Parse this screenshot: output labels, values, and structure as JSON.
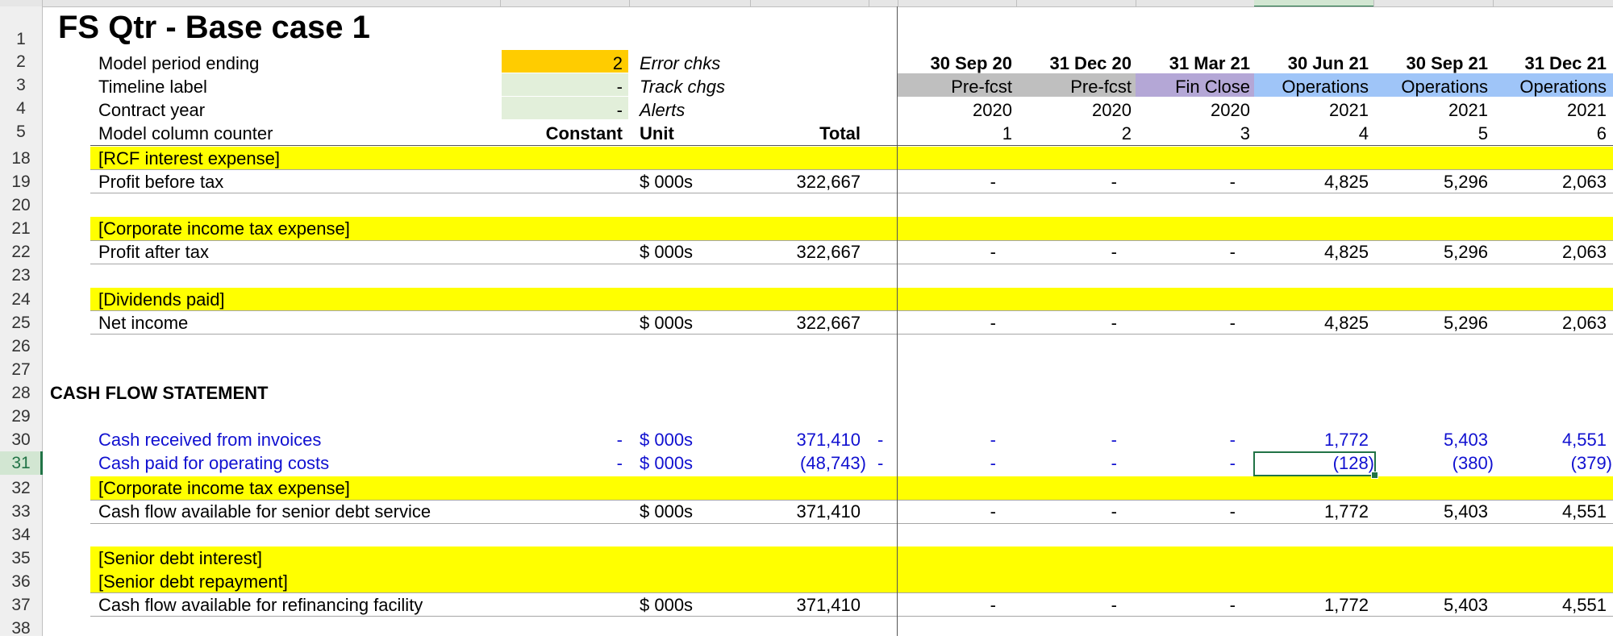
{
  "sheet": {
    "title": "FS Qtr - Base case 1",
    "row_numbers": [
      "1",
      "2",
      "3",
      "4",
      "5",
      "18",
      "19",
      "20",
      "21",
      "22",
      "23",
      "24",
      "25",
      "26",
      "27",
      "28",
      "29",
      "30",
      "31",
      "32",
      "33",
      "34",
      "35",
      "36",
      "37",
      "38"
    ],
    "selected_row": "31",
    "selected_cell": "M31"
  },
  "header_rows": {
    "model_period_ending": {
      "label": "Model period ending",
      "value": "2",
      "side_label": "Error chks"
    },
    "timeline_label": {
      "label": "Timeline label",
      "value": "-",
      "side_label": "Track chgs"
    },
    "contract_year": {
      "label": "Contract year",
      "value": "-",
      "side_label": "Alerts"
    },
    "model_column_counter": {
      "label": "Model column counter",
      "constant_header": "Constant",
      "unit_header": "Unit",
      "total_header": "Total"
    }
  },
  "periods": [
    {
      "date": "30 Sep 20",
      "phase": "Pre-fcst",
      "year": "2020",
      "counter": "1"
    },
    {
      "date": "31 Dec 20",
      "phase": "Pre-fcst",
      "year": "2020",
      "counter": "2"
    },
    {
      "date": "31 Mar 21",
      "phase": "Fin Close",
      "year": "2020",
      "counter": "3"
    },
    {
      "date": "30 Jun 21",
      "phase": "Operations",
      "year": "2021",
      "counter": "4"
    },
    {
      "date": "30 Sep 21",
      "phase": "Operations",
      "year": "2021",
      "counter": "5"
    },
    {
      "date": "31 Dec 21",
      "phase": "Operations",
      "year": "2021",
      "counter": "6"
    }
  ],
  "rows": {
    "rcf_interest": {
      "label": "[RCF interest expense]"
    },
    "profit_before_tax": {
      "label": "Profit before tax",
      "unit": "$ 000s",
      "total": "322,667",
      "values": [
        "-",
        "-",
        "-",
        "4,825",
        "5,296",
        "2,063"
      ]
    },
    "corp_tax_1": {
      "label": "[Corporate income tax expense]"
    },
    "profit_after_tax": {
      "label": "Profit after tax",
      "unit": "$ 000s",
      "total": "322,667",
      "values": [
        "-",
        "-",
        "-",
        "4,825",
        "5,296",
        "2,063"
      ]
    },
    "dividends": {
      "label": "[Dividends paid]"
    },
    "net_income": {
      "label": "Net income",
      "unit": "$ 000s",
      "total": "322,667",
      "values": [
        "-",
        "-",
        "-",
        "4,825",
        "5,296",
        "2,063"
      ]
    },
    "cash_flow_heading": {
      "label": "CASH FLOW STATEMENT"
    },
    "cash_received": {
      "label": "Cash received from invoices",
      "constant": "-",
      "unit": "$ 000s",
      "total": "371,410",
      "flag": "-",
      "values": [
        "-",
        "-",
        "-",
        "1,772",
        "5,403",
        "4,551"
      ]
    },
    "cash_paid": {
      "label": "Cash paid for operating costs",
      "constant": "-",
      "unit": "$ 000s",
      "total": "(48,743)",
      "flag": "-",
      "values": [
        "-",
        "-",
        "-",
        "(128)",
        "(380)",
        "(379)"
      ]
    },
    "corp_tax_2": {
      "label": "[Corporate income tax expense]"
    },
    "cfads": {
      "label": "Cash flow available for senior debt service",
      "unit": "$ 000s",
      "total": "371,410",
      "values": [
        "-",
        "-",
        "-",
        "1,772",
        "5,403",
        "4,551"
      ]
    },
    "senior_interest": {
      "label": "[Senior debt interest]"
    },
    "senior_repayment": {
      "label": "[Senior debt repayment]"
    },
    "cf_refi": {
      "label": "Cash flow available for refinancing facility",
      "unit": "$ 000s",
      "total": "371,410",
      "values": [
        "-",
        "-",
        "-",
        "1,772",
        "5,403",
        "4,551"
      ]
    }
  },
  "colors": {
    "yellow_band": "#ffff00",
    "orange_input": "#ffcc00",
    "light_green_input": "#e2efda",
    "prefcst": "#bfbfbf",
    "finclose": "#b4a7d6",
    "operations": "#9fc5f8",
    "link_blue": "#1010d0",
    "excel_green": "#217346"
  }
}
